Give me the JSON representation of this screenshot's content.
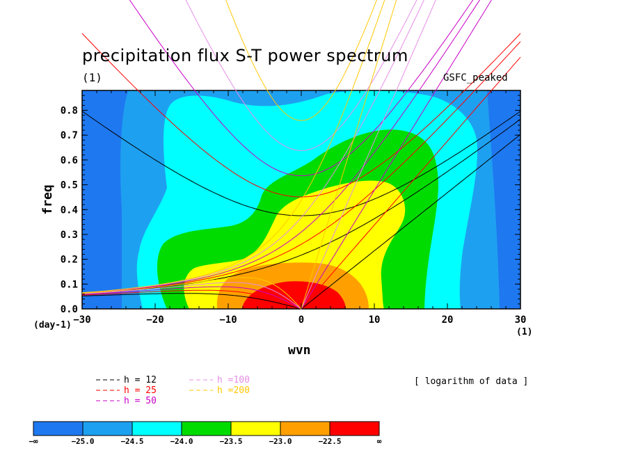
{
  "title": "precipitation flux S-T power spectrum",
  "subtitle": "(1)",
  "source_label": "GSFC_peaked",
  "note": "[ logarithm of data ]",
  "chart_data": {
    "type": "contour",
    "xlabel": "wvn",
    "ylabel": "freq",
    "x_unit_left": "(day-1)",
    "x_unit_right": "(1)",
    "xlim": [
      -30,
      30
    ],
    "ylim": [
      0,
      0.88
    ],
    "xticks": [
      -30,
      -20,
      -10,
      0,
      10,
      20,
      30
    ],
    "yticks": [
      0.0,
      0.1,
      0.2,
      0.3,
      0.4,
      0.5,
      0.6,
      0.7,
      0.8
    ],
    "contour_levels": [
      -25.0,
      -24.5,
      -24.0,
      -23.5,
      -23.0,
      -22.5
    ],
    "colorbar": {
      "labels": [
        "-∞",
        "-25.0",
        "-24.5",
        "-24.0",
        "-23.5",
        "-23.0",
        "-22.5",
        "∞"
      ],
      "colors": [
        "#1e78f0",
        "#1ea0f0",
        "#00ffff",
        "#00dc00",
        "#ffff00",
        "#ffa000",
        "#ff0000"
      ]
    },
    "dispersion_curves": [
      {
        "name": "h = 12",
        "color": "#000000",
        "equivalent_depth": 12
      },
      {
        "name": "h = 25",
        "color": "#ff0000",
        "equivalent_depth": 25
      },
      {
        "name": "h = 50",
        "color": "#c800c8",
        "equivalent_depth": 50
      },
      {
        "name": "h =100",
        "color": "#e68ce6",
        "equivalent_depth": 100
      },
      {
        "name": "h =200",
        "color": "#ffc800",
        "equivalent_depth": 200
      }
    ],
    "legend_position": "bottom-left",
    "grid": false
  }
}
